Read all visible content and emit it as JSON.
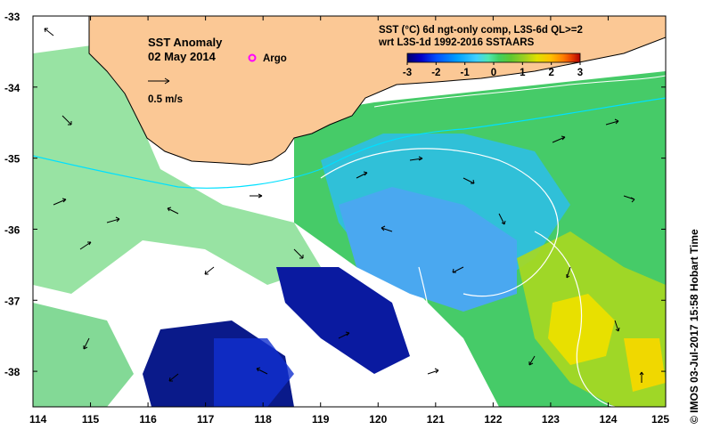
{
  "map": {
    "title": "SST Anomaly",
    "date": "02 May 2014",
    "argo_label": "Argo",
    "vector_scale_label": "0.5 m/s",
    "product_line1": "SST (°C) 6d ngt-only comp, L3S-6d QL>=2",
    "product_line2": "wrt L3S-1d 1992-2016 SSTAARS",
    "credit": "© IMOS 03-Jul-2017 15:58 Hobart Time",
    "colorbar": {
      "ticks": [
        "-3",
        "-2",
        "-1",
        "0",
        "1",
        "2",
        "3"
      ],
      "range": [
        -3,
        3
      ],
      "colors": [
        "#00006e",
        "#0000c8",
        "#0050ff",
        "#00a0ff",
        "#40d0ff",
        "#50e8b0",
        "#40d060",
        "#60c830",
        "#a0d020",
        "#e0e000",
        "#ffc000",
        "#ff8000",
        "#e84000",
        "#b00000"
      ]
    },
    "x_axis": {
      "labels": [
        "114",
        "115",
        "116",
        "117",
        "118",
        "119",
        "120",
        "121",
        "122",
        "123",
        "124",
        "125"
      ],
      "range": [
        114,
        125
      ]
    },
    "y_axis": {
      "labels": [
        "-33",
        "-34",
        "-35",
        "-36",
        "-37",
        "-38"
      ],
      "range": [
        -38.5,
        -33
      ]
    },
    "colors": {
      "land": "#fbc895",
      "coast": "#000000",
      "ocean_missing": "#ffffff",
      "contour": "#ffffff",
      "shelf": "#00e0ff",
      "argo": "#ff00ff"
    }
  }
}
